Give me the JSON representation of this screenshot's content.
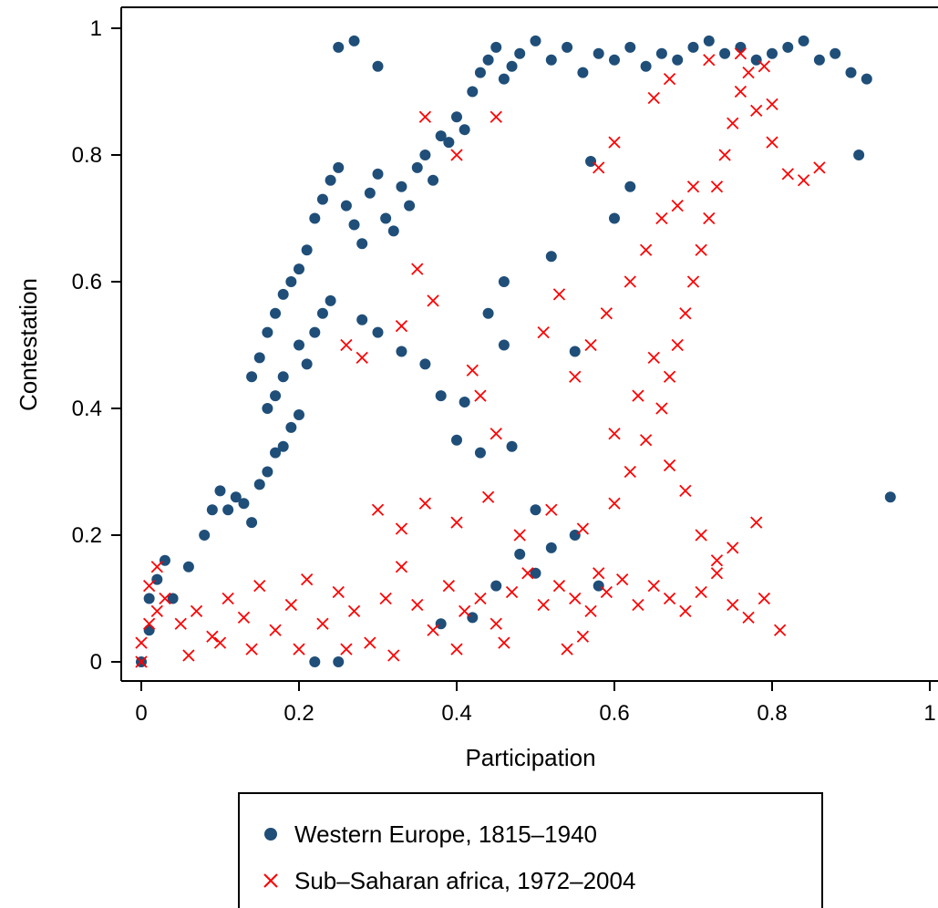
{
  "chart_data": {
    "type": "scatter",
    "title": "",
    "xlabel": "Participation",
    "ylabel": "Contestation",
    "xlim": [
      0,
      1
    ],
    "ylim": [
      0,
      1
    ],
    "x_ticks": [
      "0",
      "0.2",
      "0.4",
      "0.6",
      "0.8",
      "1"
    ],
    "y_ticks": [
      "0",
      "0.2",
      "0.4",
      "0.6",
      "0.8",
      "1"
    ],
    "grid": false,
    "legend_position": "bottom",
    "series": [
      {
        "name": "Western Europe, 1815–1940",
        "marker": "filled-circle",
        "color": "#1f4e79",
        "points": [
          [
            0.0,
            0.0
          ],
          [
            0.01,
            0.05
          ],
          [
            0.01,
            0.1
          ],
          [
            0.02,
            0.13
          ],
          [
            0.03,
            0.16
          ],
          [
            0.04,
            0.1
          ],
          [
            0.06,
            0.15
          ],
          [
            0.08,
            0.2
          ],
          [
            0.09,
            0.24
          ],
          [
            0.1,
            0.27
          ],
          [
            0.11,
            0.24
          ],
          [
            0.12,
            0.26
          ],
          [
            0.13,
            0.25
          ],
          [
            0.14,
            0.22
          ],
          [
            0.15,
            0.28
          ],
          [
            0.16,
            0.3
          ],
          [
            0.17,
            0.33
          ],
          [
            0.18,
            0.34
          ],
          [
            0.19,
            0.37
          ],
          [
            0.2,
            0.39
          ],
          [
            0.14,
            0.45
          ],
          [
            0.15,
            0.48
          ],
          [
            0.16,
            0.52
          ],
          [
            0.17,
            0.55
          ],
          [
            0.18,
            0.58
          ],
          [
            0.19,
            0.6
          ],
          [
            0.2,
            0.5
          ],
          [
            0.21,
            0.47
          ],
          [
            0.22,
            0.52
          ],
          [
            0.23,
            0.55
          ],
          [
            0.18,
            0.45
          ],
          [
            0.17,
            0.42
          ],
          [
            0.16,
            0.4
          ],
          [
            0.2,
            0.62
          ],
          [
            0.21,
            0.65
          ],
          [
            0.22,
            0.7
          ],
          [
            0.23,
            0.73
          ],
          [
            0.24,
            0.76
          ],
          [
            0.25,
            0.78
          ],
          [
            0.26,
            0.72
          ],
          [
            0.27,
            0.69
          ],
          [
            0.28,
            0.66
          ],
          [
            0.29,
            0.74
          ],
          [
            0.3,
            0.77
          ],
          [
            0.31,
            0.7
          ],
          [
            0.32,
            0.68
          ],
          [
            0.33,
            0.75
          ],
          [
            0.34,
            0.72
          ],
          [
            0.35,
            0.78
          ],
          [
            0.36,
            0.8
          ],
          [
            0.37,
            0.76
          ],
          [
            0.38,
            0.83
          ],
          [
            0.39,
            0.82
          ],
          [
            0.4,
            0.86
          ],
          [
            0.41,
            0.84
          ],
          [
            0.42,
            0.9
          ],
          [
            0.43,
            0.93
          ],
          [
            0.44,
            0.95
          ],
          [
            0.45,
            0.97
          ],
          [
            0.46,
            0.92
          ],
          [
            0.47,
            0.94
          ],
          [
            0.48,
            0.96
          ],
          [
            0.5,
            0.98
          ],
          [
            0.52,
            0.95
          ],
          [
            0.54,
            0.97
          ],
          [
            0.56,
            0.93
          ],
          [
            0.58,
            0.96
          ],
          [
            0.6,
            0.95
          ],
          [
            0.62,
            0.97
          ],
          [
            0.64,
            0.94
          ],
          [
            0.66,
            0.96
          ],
          [
            0.68,
            0.95
          ],
          [
            0.7,
            0.97
          ],
          [
            0.72,
            0.98
          ],
          [
            0.74,
            0.96
          ],
          [
            0.76,
            0.97
          ],
          [
            0.78,
            0.95
          ],
          [
            0.8,
            0.96
          ],
          [
            0.82,
            0.97
          ],
          [
            0.84,
            0.98
          ],
          [
            0.86,
            0.95
          ],
          [
            0.88,
            0.96
          ],
          [
            0.9,
            0.93
          ],
          [
            0.92,
            0.92
          ],
          [
            0.25,
            0.97
          ],
          [
            0.27,
            0.98
          ],
          [
            0.3,
            0.94
          ],
          [
            0.22,
            0.0
          ],
          [
            0.25,
            0.0
          ],
          [
            0.38,
            0.06
          ],
          [
            0.42,
            0.07
          ],
          [
            0.45,
            0.12
          ],
          [
            0.48,
            0.17
          ],
          [
            0.5,
            0.14
          ],
          [
            0.52,
            0.18
          ],
          [
            0.55,
            0.2
          ],
          [
            0.58,
            0.12
          ],
          [
            0.4,
            0.35
          ],
          [
            0.43,
            0.33
          ],
          [
            0.47,
            0.34
          ],
          [
            0.5,
            0.24
          ],
          [
            0.55,
            0.49
          ],
          [
            0.6,
            0.7
          ],
          [
            0.62,
            0.75
          ],
          [
            0.57,
            0.79
          ],
          [
            0.52,
            0.64
          ],
          [
            0.46,
            0.6
          ],
          [
            0.44,
            0.55
          ],
          [
            0.46,
            0.5
          ],
          [
            0.91,
            0.8
          ],
          [
            0.95,
            0.26
          ],
          [
            0.24,
            0.57
          ],
          [
            0.28,
            0.54
          ],
          [
            0.3,
            0.52
          ],
          [
            0.33,
            0.49
          ],
          [
            0.36,
            0.47
          ],
          [
            0.38,
            0.42
          ],
          [
            0.41,
            0.41
          ]
        ]
      },
      {
        "name": "Sub–Saharan africa, 1972–2004",
        "marker": "x",
        "color": "#ff0000",
        "points": [
          [
            0.0,
            0.0
          ],
          [
            0.0,
            0.03
          ],
          [
            0.01,
            0.06
          ],
          [
            0.01,
            0.12
          ],
          [
            0.02,
            0.08
          ],
          [
            0.02,
            0.15
          ],
          [
            0.03,
            0.1
          ],
          [
            0.05,
            0.06
          ],
          [
            0.07,
            0.08
          ],
          [
            0.09,
            0.04
          ],
          [
            0.11,
            0.1
          ],
          [
            0.13,
            0.07
          ],
          [
            0.15,
            0.12
          ],
          [
            0.17,
            0.05
          ],
          [
            0.19,
            0.09
          ],
          [
            0.21,
            0.13
          ],
          [
            0.23,
            0.06
          ],
          [
            0.25,
            0.11
          ],
          [
            0.27,
            0.08
          ],
          [
            0.29,
            0.03
          ],
          [
            0.31,
            0.1
          ],
          [
            0.33,
            0.15
          ],
          [
            0.35,
            0.09
          ],
          [
            0.37,
            0.05
          ],
          [
            0.39,
            0.12
          ],
          [
            0.41,
            0.08
          ],
          [
            0.43,
            0.1
          ],
          [
            0.45,
            0.06
          ],
          [
            0.47,
            0.11
          ],
          [
            0.49,
            0.14
          ],
          [
            0.51,
            0.09
          ],
          [
            0.53,
            0.12
          ],
          [
            0.55,
            0.1
          ],
          [
            0.57,
            0.08
          ],
          [
            0.59,
            0.11
          ],
          [
            0.61,
            0.13
          ],
          [
            0.63,
            0.09
          ],
          [
            0.65,
            0.12
          ],
          [
            0.67,
            0.1
          ],
          [
            0.69,
            0.08
          ],
          [
            0.71,
            0.11
          ],
          [
            0.73,
            0.14
          ],
          [
            0.75,
            0.09
          ],
          [
            0.77,
            0.07
          ],
          [
            0.79,
            0.1
          ],
          [
            0.81,
            0.05
          ],
          [
            0.3,
            0.24
          ],
          [
            0.33,
            0.21
          ],
          [
            0.36,
            0.25
          ],
          [
            0.4,
            0.22
          ],
          [
            0.44,
            0.26
          ],
          [
            0.48,
            0.2
          ],
          [
            0.52,
            0.24
          ],
          [
            0.56,
            0.21
          ],
          [
            0.6,
            0.25
          ],
          [
            0.62,
            0.3
          ],
          [
            0.64,
            0.35
          ],
          [
            0.66,
            0.4
          ],
          [
            0.67,
            0.45
          ],
          [
            0.68,
            0.5
          ],
          [
            0.69,
            0.55
          ],
          [
            0.7,
            0.6
          ],
          [
            0.71,
            0.65
          ],
          [
            0.72,
            0.7
          ],
          [
            0.73,
            0.75
          ],
          [
            0.74,
            0.8
          ],
          [
            0.75,
            0.85
          ],
          [
            0.76,
            0.9
          ],
          [
            0.77,
            0.93
          ],
          [
            0.78,
            0.87
          ],
          [
            0.8,
            0.82
          ],
          [
            0.82,
            0.77
          ],
          [
            0.84,
            0.76
          ],
          [
            0.86,
            0.78
          ],
          [
            0.6,
            0.36
          ],
          [
            0.63,
            0.42
          ],
          [
            0.65,
            0.48
          ],
          [
            0.67,
            0.31
          ],
          [
            0.69,
            0.27
          ],
          [
            0.71,
            0.2
          ],
          [
            0.73,
            0.16
          ],
          [
            0.75,
            0.18
          ],
          [
            0.78,
            0.22
          ],
          [
            0.62,
            0.6
          ],
          [
            0.64,
            0.65
          ],
          [
            0.66,
            0.7
          ],
          [
            0.68,
            0.72
          ],
          [
            0.7,
            0.75
          ],
          [
            0.59,
            0.55
          ],
          [
            0.57,
            0.5
          ],
          [
            0.55,
            0.45
          ],
          [
            0.53,
            0.58
          ],
          [
            0.51,
            0.52
          ],
          [
            0.35,
            0.62
          ],
          [
            0.37,
            0.57
          ],
          [
            0.33,
            0.53
          ],
          [
            0.28,
            0.48
          ],
          [
            0.26,
            0.5
          ],
          [
            0.43,
            0.42
          ],
          [
            0.45,
            0.36
          ],
          [
            0.42,
            0.46
          ],
          [
            0.45,
            0.86
          ],
          [
            0.4,
            0.8
          ],
          [
            0.36,
            0.86
          ],
          [
            0.58,
            0.78
          ],
          [
            0.6,
            0.82
          ],
          [
            0.65,
            0.89
          ],
          [
            0.67,
            0.92
          ],
          [
            0.72,
            0.95
          ],
          [
            0.76,
            0.96
          ],
          [
            0.79,
            0.94
          ],
          [
            0.8,
            0.88
          ],
          [
            0.58,
            0.14
          ],
          [
            0.56,
            0.04
          ],
          [
            0.54,
            0.02
          ],
          [
            0.46,
            0.03
          ],
          [
            0.4,
            0.02
          ],
          [
            0.32,
            0.01
          ],
          [
            0.26,
            0.02
          ],
          [
            0.2,
            0.02
          ],
          [
            0.14,
            0.02
          ],
          [
            0.1,
            0.03
          ],
          [
            0.06,
            0.01
          ]
        ]
      }
    ]
  }
}
